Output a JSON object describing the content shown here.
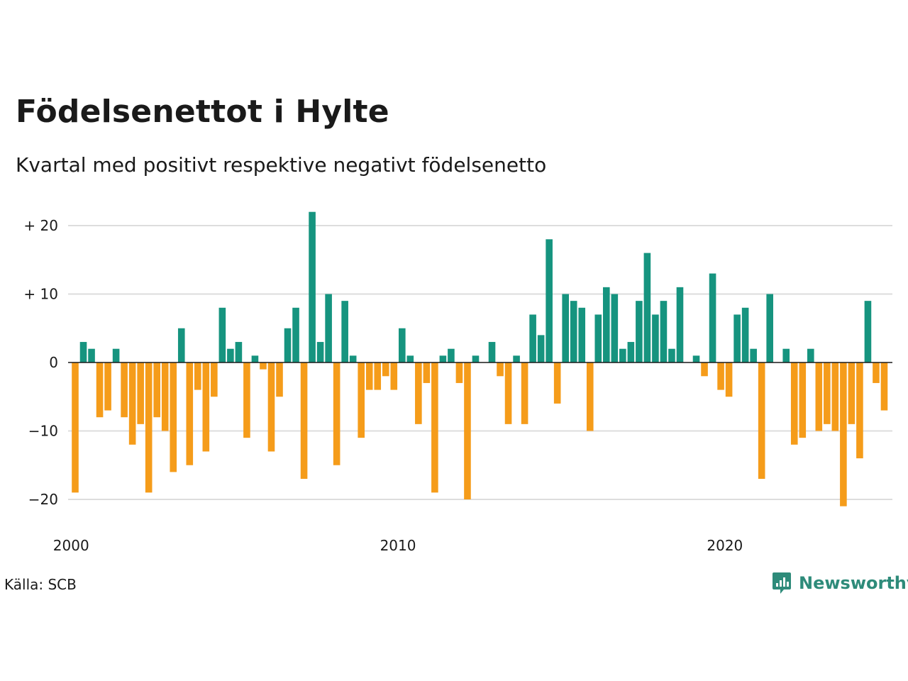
{
  "header": {
    "title": "Födelsenettot i Hylte",
    "subtitle": "Kvartal med positivt respektive negativt födelsenetto"
  },
  "footer": {
    "source": "Källa: SCB",
    "brand": "Newsworthy",
    "brand_icon": "newsworthy-logo-icon"
  },
  "colors": {
    "positive": "#16947f",
    "negative": "#f59c1a",
    "grid": "#dddddd",
    "zero_line": "#1a1a1a",
    "brand": "#2e8b7a"
  },
  "chart_data": {
    "type": "bar",
    "x_start": "2000 Q1",
    "ylim": [
      -21,
      22
    ],
    "y_ticks": [
      20,
      10,
      0,
      -10,
      -20
    ],
    "y_tick_labels": [
      "+ 20",
      "+ 10",
      "0",
      "−10",
      "−20"
    ],
    "x_tick_years": [
      2000,
      2010,
      2020
    ],
    "x_tick_labels": [
      "2000",
      "2010",
      "2020"
    ],
    "grid": true,
    "values": [
      -19,
      3,
      2,
      -8,
      -7,
      2,
      -8,
      -12,
      -9,
      -19,
      -8,
      -10,
      -16,
      5,
      -15,
      -4,
      -13,
      -5,
      8,
      2,
      3,
      -11,
      1,
      -1,
      -13,
      -5,
      5,
      8,
      -17,
      22,
      3,
      10,
      -15,
      9,
      1,
      -11,
      -4,
      -4,
      -2,
      -4,
      5,
      1,
      -9,
      -3,
      -19,
      1,
      2,
      -3,
      -20,
      1,
      0,
      3,
      -2,
      -9,
      1,
      -9,
      7,
      4,
      18,
      -6,
      10,
      9,
      8,
      -10,
      7,
      11,
      10,
      2,
      3,
      9,
      16,
      7,
      9,
      2,
      11,
      0,
      1,
      -2,
      13,
      -4,
      -5,
      7,
      8,
      2,
      -17,
      10,
      0,
      2,
      -12,
      -11,
      2,
      -10,
      -9,
      -10,
      -21,
      -9,
      -14,
      9,
      -3,
      -7
    ]
  }
}
